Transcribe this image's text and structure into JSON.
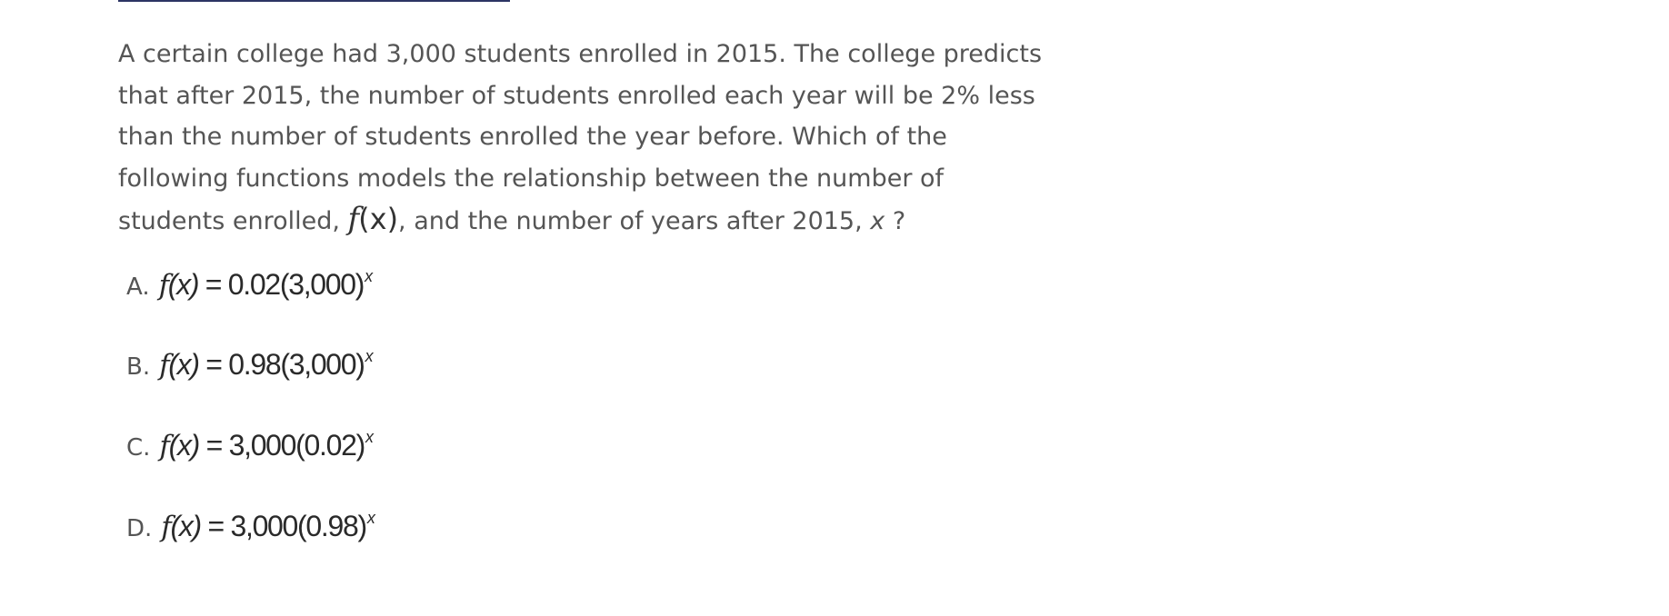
{
  "question": {
    "line1": "A certain college had 3,000 students enrolled in 2015. The college predicts",
    "line2": "that after 2015, the number of students enrolled each year will be 2% less",
    "line3": "than the number of students enrolled the year before. Which of the",
    "line4": "following functions models the relationship between the number of",
    "line5_pre": "students enrolled,",
    "line5_fn": "f",
    "line5_arg": "(x)",
    "line5_mid": ", and the number of years after 2015,",
    "line5_var": "x",
    "line5_end": "?"
  },
  "options": [
    {
      "letter": "A.",
      "fname": "f",
      "lhs": "(x)",
      "rhs": " = 0.02(3,000)",
      "exp": "x"
    },
    {
      "letter": "B.",
      "fname": "f",
      "lhs": "(x)",
      "rhs": " = 0.98(3,000)",
      "exp": "x"
    },
    {
      "letter": "C.",
      "fname": "f",
      "lhs": "(x)",
      "rhs": " = 3,000(0.02)",
      "exp": "x"
    },
    {
      "letter": "D.",
      "fname": "f",
      "lhs": "(x)",
      "rhs": " = 3,000(0.98)",
      "exp": "x"
    }
  ]
}
